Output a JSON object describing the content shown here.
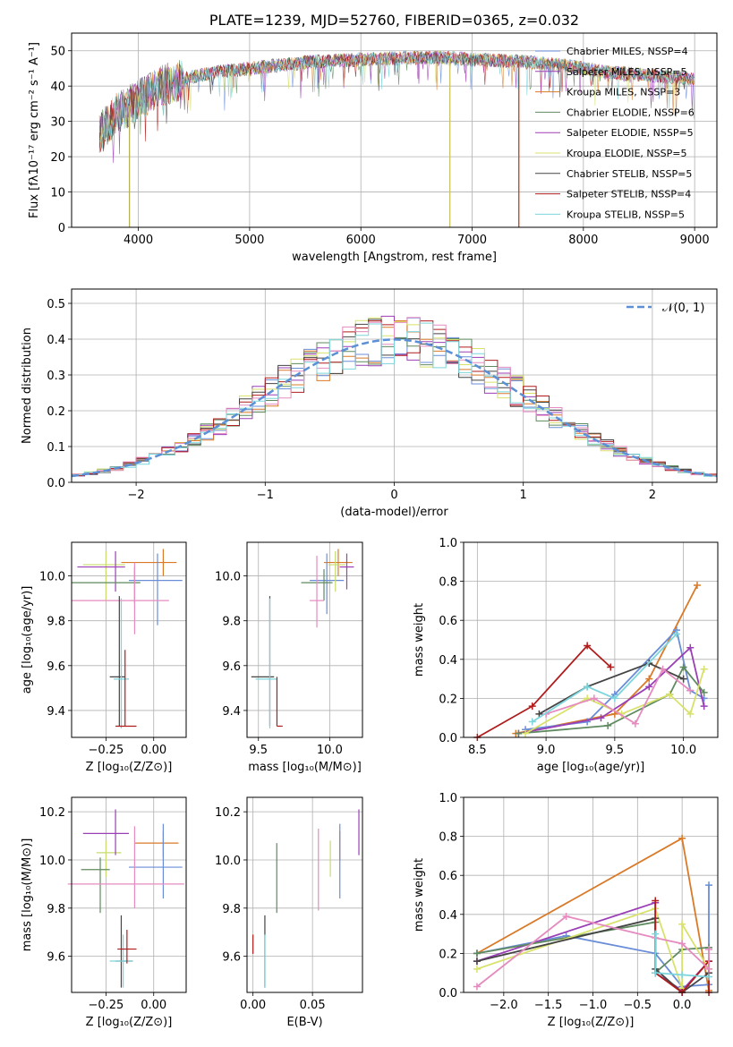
{
  "chart_data": [
    {
      "type": "line",
      "id": "spectrum",
      "title": "PLATE=1239, MJD=52760, FIBERID=0365, z=0.032",
      "xlabel": "wavelength [Angstrom, rest frame]",
      "ylabel": "Flux [fλ10⁻¹⁷ erg cm⁻² s⁻¹ A⁻¹]",
      "xlim": [
        3400,
        9200
      ],
      "ylim": [
        0,
        55
      ],
      "xticks": [
        4000,
        5000,
        6000,
        7000,
        8000,
        9000
      ],
      "yticks": [
        0,
        10,
        20,
        30,
        40,
        50
      ],
      "continuum": {
        "x": [
          3650,
          3800,
          4000,
          4200,
          4400,
          4700,
          5000,
          5300,
          5600,
          6000,
          6400,
          6800,
          7000,
          7400,
          7800,
          8200,
          8600,
          9000
        ],
        "y": [
          27,
          32,
          36,
          40,
          42,
          44,
          45,
          46,
          47,
          47.5,
          48,
          48,
          47.5,
          47,
          46,
          44,
          43,
          42
        ]
      },
      "legend": [
        {
          "label": "Chabrier MILES, NSSP=4",
          "color": "#6a8dd8"
        },
        {
          "label": "Salpeter MILES, NSSP=5",
          "color": "#9a3fb5"
        },
        {
          "label": "Kroupa MILES, NSSP=3",
          "color": "#d97a28"
        },
        {
          "label": "Chabrier ELODIE, NSSP=6",
          "color": "#5f8a5f"
        },
        {
          "label": "Salpeter ELODIE, NSSP=5",
          "color": "#a33db5"
        },
        {
          "label": "Kroupa ELODIE, NSSP=5",
          "color": "#d8e26a"
        },
        {
          "label": "Chabrier STELIB, NSSP=5",
          "color": "#444444"
        },
        {
          "label": "Salpeter STELIB, NSSP=4",
          "color": "#b01c1c"
        },
        {
          "label": "Kroupa STELIB, NSSP=5",
          "color": "#7dd5dc"
        }
      ],
      "drops": [
        {
          "x": 3920,
          "color": "#b7b25a"
        },
        {
          "x": 6800,
          "color": "#c9c46a"
        },
        {
          "x": 7420,
          "color": "#c0401d"
        }
      ]
    },
    {
      "type": "line",
      "id": "residuals",
      "xlabel": "(data-model)/error",
      "ylabel": "Normed distribution",
      "xlim": [
        -2.5,
        2.5
      ],
      "ylim": [
        0,
        0.54
      ],
      "xticks": [
        -2,
        -1,
        0,
        1,
        2
      ],
      "yticks": [
        0.0,
        0.1,
        0.2,
        0.3,
        0.4,
        0.5
      ],
      "legend": [
        {
          "label": "𝒩(0, 1)",
          "color": "#5b8fd6"
        }
      ],
      "series_colors": [
        "#6a8dd8",
        "#d97a28",
        "#5f8a5f",
        "#9a3fb5",
        "#d8e26a",
        "#444444",
        "#b01c1c",
        "#e58bbf",
        "#7dd5dc"
      ]
    },
    {
      "type": "scatter",
      "id": "z-age",
      "xlabel": "Z [log₁₀(Z/Z⊙)]",
      "ylabel": "age  [log₁₀(age/yr)]",
      "xlim": [
        -0.43,
        0.17
      ],
      "ylim": [
        9.28,
        10.15
      ],
      "xticks": [
        -0.25,
        0.0
      ],
      "yticks": [
        9.4,
        9.6,
        9.8,
        10.0
      ],
      "points": [
        {
          "x": 0.05,
          "y": 10.06,
          "xerr": [
            0.22,
            0.07
          ],
          "yerr": [
            0.06,
            0.06
          ],
          "color": "#d97a28"
        },
        {
          "x": 0.02,
          "y": 9.98,
          "xerr": [
            0.15,
            0.13
          ],
          "yerr": [
            0.2,
            0.12
          ],
          "color": "#6a8dd8"
        },
        {
          "x": -0.25,
          "y": 10.05,
          "xerr": [
            0.12,
            0.1
          ],
          "yerr": [
            0.16,
            0.06
          ],
          "color": "#c7db6e"
        },
        {
          "x": -0.2,
          "y": 10.04,
          "xerr": [
            0.2,
            0.05
          ],
          "yerr": [
            0.11,
            0.07
          ],
          "color": "#9a3fb5"
        },
        {
          "x": -0.1,
          "y": 9.97,
          "xerr": [
            0.33,
            0.03
          ],
          "yerr": [
            0.09,
            0.07
          ],
          "color": "#5f8a5f"
        },
        {
          "x": -0.1,
          "y": 9.89,
          "xerr": [
            0.33,
            0.18
          ],
          "yerr": [
            0.15,
            0.17
          ],
          "color": "#e58bbf"
        },
        {
          "x": -0.18,
          "y": 9.55,
          "xerr": [
            0.05,
            0.03
          ],
          "yerr": [
            0.22,
            0.36
          ],
          "color": "#444444"
        },
        {
          "x": -0.17,
          "y": 9.54,
          "xerr": [
            0.04,
            0.04
          ],
          "yerr": [
            0.22,
            0.36
          ],
          "color": "#7dd5dc"
        },
        {
          "x": -0.15,
          "y": 9.33,
          "xerr": [
            0.05,
            0.06
          ],
          "yerr": [
            0.0,
            0.34
          ],
          "color": "#b01c1c"
        }
      ]
    },
    {
      "type": "scatter",
      "id": "mass-age",
      "xlabel": "mass [log₁₀(M/M⊙)]",
      "ylabel": "",
      "xlim": [
        9.42,
        10.23
      ],
      "ylim": [
        9.28,
        10.15
      ],
      "xticks": [
        9.5,
        10.0
      ],
      "yticks": [
        9.4,
        9.6,
        9.8,
        10.0
      ],
      "points": [
        {
          "x": 10.06,
          "y": 10.06,
          "xerr": [
            0.1,
            0.1
          ],
          "yerr": [
            0.06,
            0.06
          ],
          "color": "#d97a28"
        },
        {
          "x": 9.98,
          "y": 9.98,
          "xerr": [
            0.12,
            0.12
          ],
          "yerr": [
            0.15,
            0.12
          ],
          "color": "#6a8dd8"
        },
        {
          "x": 10.04,
          "y": 10.05,
          "xerr": [
            0.05,
            0.07
          ],
          "yerr": [
            0.12,
            0.06
          ],
          "color": "#c7db6e"
        },
        {
          "x": 10.12,
          "y": 10.04,
          "xerr": [
            0.05,
            0.05
          ],
          "yerr": [
            0.1,
            0.06
          ],
          "color": "#9a3fb5"
        },
        {
          "x": 9.96,
          "y": 9.97,
          "xerr": [
            0.16,
            0.06
          ],
          "yerr": [
            0.08,
            0.06
          ],
          "color": "#5f8a5f"
        },
        {
          "x": 9.91,
          "y": 9.89,
          "xerr": [
            0.05,
            0.05
          ],
          "yerr": [
            0.12,
            0.2
          ],
          "color": "#e58bbf"
        },
        {
          "x": 9.58,
          "y": 9.55,
          "xerr": [
            0.13,
            0.03
          ],
          "yerr": [
            0.22,
            0.36
          ],
          "color": "#444444"
        },
        {
          "x": 9.58,
          "y": 9.54,
          "xerr": [
            0.1,
            0.05
          ],
          "yerr": [
            0.22,
            0.36
          ],
          "color": "#7dd5dc"
        },
        {
          "x": 9.63,
          "y": 9.33,
          "xerr": [
            0.0,
            0.04
          ],
          "yerr": [
            0.0,
            0.22
          ],
          "color": "#b01c1c"
        }
      ]
    },
    {
      "type": "line",
      "id": "age-weight",
      "xlabel": "age  [log₁₀(age/yr)]",
      "ylabel": "mass weight",
      "xlim": [
        8.4,
        10.25
      ],
      "ylim": [
        0,
        1.0
      ],
      "xticks": [
        8.5,
        9.0,
        9.5,
        10.0
      ],
      "yticks": [
        0.0,
        0.2,
        0.4,
        0.6,
        0.8,
        1.0
      ],
      "series": [
        {
          "x": [
            8.78,
            9.5,
            9.75,
            10.1
          ],
          "y": [
            0.02,
            0.12,
            0.3,
            0.78
          ],
          "color": "#d97a28"
        },
        {
          "x": [
            8.85,
            9.3,
            9.5,
            9.95,
            10.05,
            10.15
          ],
          "y": [
            0.04,
            0.08,
            0.22,
            0.55,
            0.24,
            0.2
          ],
          "color": "#6a8dd8"
        },
        {
          "x": [
            8.8,
            9.4,
            9.75,
            10.05,
            10.15
          ],
          "y": [
            0.02,
            0.1,
            0.26,
            0.46,
            0.16
          ],
          "color": "#9a3fb5"
        },
        {
          "x": [
            8.8,
            9.45,
            9.9,
            10.0,
            10.15
          ],
          "y": [
            0.02,
            0.06,
            0.22,
            0.36,
            0.23
          ],
          "color": "#5f8a5f"
        },
        {
          "x": [
            8.85,
            9.3,
            9.55,
            9.9,
            10.05,
            10.15
          ],
          "y": [
            0.02,
            0.2,
            0.12,
            0.22,
            0.12,
            0.35
          ],
          "color": "#d8e26a"
        },
        {
          "x": [
            8.95,
            9.3,
            9.75,
            10.0
          ],
          "y": [
            0.12,
            0.26,
            0.38,
            0.3
          ],
          "color": "#444444"
        },
        {
          "x": [
            8.5,
            8.9,
            9.3,
            9.47
          ],
          "y": [
            0.0,
            0.16,
            0.47,
            0.36
          ],
          "color": "#b01c1c"
        },
        {
          "x": [
            9.0,
            9.35,
            9.65,
            9.85,
            10.05
          ],
          "y": [
            0.12,
            0.2,
            0.07,
            0.35,
            0.24
          ],
          "color": "#e58bbf"
        },
        {
          "x": [
            8.9,
            9.3,
            9.5,
            9.95
          ],
          "y": [
            0.08,
            0.26,
            0.2,
            0.53
          ],
          "color": "#7dd5dc"
        }
      ]
    },
    {
      "type": "scatter",
      "id": "z-mass",
      "xlabel": "Z [log₁₀(Z/Z⊙)]",
      "ylabel": "mass [log₁₀(M/M⊙)]",
      "xlim": [
        -0.43,
        0.17
      ],
      "ylim": [
        9.45,
        10.26
      ],
      "xticks": [
        -0.25,
        0.0
      ],
      "yticks": [
        9.6,
        9.8,
        10.0,
        10.2
      ],
      "points": [
        {
          "x": 0.05,
          "y": 10.07,
          "xerr": [
            0.15,
            0.08
          ],
          "yerr": [
            0.06,
            0.05
          ],
          "color": "#d97a28"
        },
        {
          "x": 0.05,
          "y": 9.97,
          "xerr": [
            0.18,
            0.1
          ],
          "yerr": [
            0.13,
            0.18
          ],
          "color": "#6a8dd8"
        },
        {
          "x": -0.25,
          "y": 10.03,
          "xerr": [
            0.05,
            0.08
          ],
          "yerr": [
            0.1,
            0.05
          ],
          "color": "#c7db6e"
        },
        {
          "x": -0.2,
          "y": 10.11,
          "xerr": [
            0.17,
            0.07
          ],
          "yerr": [
            0.09,
            0.1
          ],
          "color": "#9a3fb5"
        },
        {
          "x": -0.28,
          "y": 9.96,
          "xerr": [
            0.1,
            0.05
          ],
          "yerr": [
            0.18,
            0.05
          ],
          "color": "#5f8a5f"
        },
        {
          "x": -0.1,
          "y": 9.9,
          "xerr": [
            0.35,
            0.26
          ],
          "yerr": [
            0.1,
            0.24
          ],
          "color": "#e58bbf"
        },
        {
          "x": -0.17,
          "y": 9.58,
          "xerr": [
            0.03,
            0.06
          ],
          "yerr": [
            0.11,
            0.19
          ],
          "color": "#444444"
        },
        {
          "x": -0.16,
          "y": 9.58,
          "xerr": [
            0.07,
            0.05
          ],
          "yerr": [
            0.11,
            0.11
          ],
          "color": "#7dd5dc"
        },
        {
          "x": -0.14,
          "y": 9.63,
          "xerr": [
            0.05,
            0.05
          ],
          "yerr": [
            0.06,
            0.08
          ],
          "color": "#b01c1c"
        }
      ]
    },
    {
      "type": "scatter",
      "id": "ebv-mass",
      "xlabel": "E(B-V)",
      "ylabel": "",
      "xlim": [
        -0.005,
        0.092
      ],
      "ylim": [
        9.45,
        10.26
      ],
      "xticks": [
        0.0,
        0.05
      ],
      "yticks": [
        9.6,
        9.8,
        10.0,
        10.2
      ],
      "points": [
        {
          "x": 0.073,
          "y": 10.07,
          "xerr": [
            0,
            0
          ],
          "yerr": [
            0.07,
            0.05
          ],
          "color": "#d97a28"
        },
        {
          "x": 0.073,
          "y": 9.97,
          "xerr": [
            0,
            0
          ],
          "yerr": [
            0.13,
            0.18
          ],
          "color": "#6a8dd8"
        },
        {
          "x": 0.065,
          "y": 10.03,
          "xerr": [
            0,
            0
          ],
          "yerr": [
            0.1,
            0.05
          ],
          "color": "#c7db6e"
        },
        {
          "x": 0.089,
          "y": 10.11,
          "xerr": [
            0,
            0
          ],
          "yerr": [
            0.09,
            0.1
          ],
          "color": "#9a3fb5"
        },
        {
          "x": 0.02,
          "y": 9.96,
          "xerr": [
            0,
            0
          ],
          "yerr": [
            0.18,
            0.11
          ],
          "color": "#5f8a5f"
        },
        {
          "x": 0.055,
          "y": 9.95,
          "xerr": [
            0,
            0
          ],
          "yerr": [
            0.16,
            0.18
          ],
          "color": "#e58bbf"
        },
        {
          "x": 0.01,
          "y": 9.58,
          "xerr": [
            0,
            0
          ],
          "yerr": [
            0.11,
            0.19
          ],
          "color": "#444444"
        },
        {
          "x": 0.01,
          "y": 9.58,
          "xerr": [
            0,
            0
          ],
          "yerr": [
            0.11,
            0.11
          ],
          "color": "#7dd5dc"
        },
        {
          "x": 0.0,
          "y": 9.63,
          "xerr": [
            0,
            0
          ],
          "yerr": [
            0.02,
            0.06
          ],
          "color": "#b01c1c"
        }
      ]
    },
    {
      "type": "line",
      "id": "z-weight",
      "xlabel": "Z [log₁₀(Z/Z⊙)]",
      "ylabel": "mass weight",
      "xlim": [
        -2.45,
        0.4
      ],
      "ylim": [
        0,
        1.0
      ],
      "xticks": [
        -2.0,
        -1.5,
        -1.0,
        -0.5,
        0.0
      ],
      "yticks": [
        0.0,
        0.2,
        0.4,
        0.6,
        0.8,
        1.0
      ],
      "series": [
        {
          "x": [
            -2.3,
            0.0,
            0.3
          ],
          "y": [
            0.2,
            0.79,
            0.01
          ],
          "color": "#d97a28"
        },
        {
          "x": [
            -2.3,
            -1.3,
            -0.3,
            0.0,
            0.3,
            0.3
          ],
          "y": [
            0.2,
            0.29,
            0.2,
            0.03,
            0.04,
            0.55
          ],
          "color": "#6a8dd8"
        },
        {
          "x": [
            -2.3,
            -0.3,
            -0.3,
            0.0,
            0.3
          ],
          "y": [
            0.16,
            0.46,
            0.1,
            0.01,
            0.16
          ],
          "color": "#9a3fb5"
        },
        {
          "x": [
            -2.3,
            -0.3,
            -0.3,
            0.0,
            0.3
          ],
          "y": [
            0.2,
            0.36,
            0.1,
            0.22,
            0.23
          ],
          "color": "#5f8a5f"
        },
        {
          "x": [
            -2.3,
            -0.3,
            0.0,
            0.0,
            0.3
          ],
          "y": [
            0.12,
            0.43,
            0.02,
            0.35,
            0.12
          ],
          "color": "#d8e26a"
        },
        {
          "x": [
            -2.3,
            -0.3,
            -0.3,
            0.0,
            0.3
          ],
          "y": [
            0.16,
            0.38,
            0.12,
            0.0,
            0.1
          ],
          "color": "#444444"
        },
        {
          "x": [
            -0.3,
            -0.3,
            0.0,
            0.3,
            0.3
          ],
          "y": [
            0.47,
            0.1,
            0.0,
            0.16,
            0.0
          ],
          "color": "#b01c1c"
        },
        {
          "x": [
            -2.3,
            -1.3,
            -0.3,
            0.0,
            0.3,
            0.3
          ],
          "y": [
            0.03,
            0.39,
            0.28,
            0.25,
            0.12,
            0.22
          ],
          "color": "#e58bbf"
        },
        {
          "x": [
            -0.3,
            -0.3,
            0.0,
            0.3
          ],
          "y": [
            0.3,
            0.1,
            0.09,
            0.08
          ],
          "color": "#7dd5dc"
        }
      ]
    }
  ]
}
